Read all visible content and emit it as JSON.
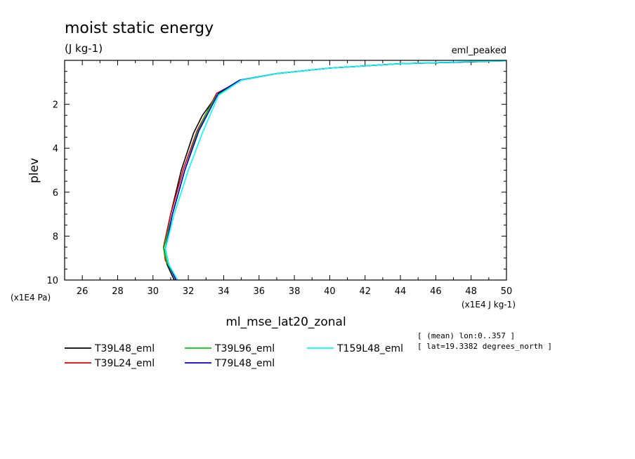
{
  "chart_data": {
    "type": "line",
    "title": "moist static energy",
    "subtitle": "(J kg-1)",
    "experiment_label": "eml_peaked",
    "xlabel": "ml_mse_lat20_zonal",
    "ylabel": "plev",
    "x_units": "(x1E4 J kg-1)",
    "y_units": "(x1E4 Pa)",
    "xlim": [
      25,
      50
    ],
    "ylim": [
      10,
      0
    ],
    "y_inverted": true,
    "x_ticks": [
      26,
      28,
      30,
      32,
      34,
      36,
      38,
      40,
      42,
      44,
      46,
      48,
      50
    ],
    "y_ticks": [
      2,
      4,
      6,
      8,
      10
    ],
    "grid": false,
    "legend_position": "bottom",
    "annotations": [
      "[ (mean) lon:0..357 ]",
      "[ lat=19.3382 degrees_north ]"
    ],
    "series": [
      {
        "name": "T39L48_eml",
        "color": "#000000",
        "points": [
          [
            31.2,
            10.0
          ],
          [
            30.8,
            9.3
          ],
          [
            30.6,
            8.5
          ],
          [
            31.0,
            7.0
          ],
          [
            31.6,
            5.0
          ],
          [
            32.3,
            3.3
          ],
          [
            32.8,
            2.5
          ],
          [
            33.6,
            1.6
          ],
          [
            35.0,
            0.9
          ],
          [
            37.0,
            0.6
          ],
          [
            40.0,
            0.35
          ],
          [
            44.0,
            0.15
          ],
          [
            50.0,
            0.02
          ]
        ]
      },
      {
        "name": "T39L24_eml",
        "color": "#e00000",
        "points": [
          [
            31.4,
            10.0
          ],
          [
            30.7,
            9.1
          ],
          [
            30.6,
            8.5
          ],
          [
            31.0,
            7.0
          ],
          [
            31.7,
            5.0
          ],
          [
            32.5,
            3.2
          ],
          [
            33.6,
            1.5
          ],
          [
            35.0,
            0.9
          ],
          [
            37.0,
            0.6
          ],
          [
            40.0,
            0.35
          ],
          [
            44.0,
            0.15
          ],
          [
            50.0,
            0.02
          ]
        ]
      },
      {
        "name": "T39L96_eml",
        "color": "#00cc00",
        "points": [
          [
            31.3,
            10.0
          ],
          [
            30.8,
            9.2
          ],
          [
            30.6,
            8.6
          ],
          [
            31.1,
            7.0
          ],
          [
            31.8,
            5.0
          ],
          [
            32.5,
            3.3
          ],
          [
            33.1,
            2.3
          ],
          [
            33.6,
            1.6
          ],
          [
            35.0,
            0.9
          ],
          [
            37.0,
            0.6
          ],
          [
            40.0,
            0.35
          ],
          [
            44.0,
            0.15
          ],
          [
            50.0,
            0.02
          ]
        ]
      },
      {
        "name": "T79L48_eml",
        "color": "#0000cc",
        "points": [
          [
            31.3,
            10.0
          ],
          [
            30.9,
            9.3
          ],
          [
            30.7,
            8.6
          ],
          [
            31.1,
            7.0
          ],
          [
            31.8,
            5.0
          ],
          [
            32.6,
            3.2
          ],
          [
            33.7,
            1.5
          ],
          [
            34.9,
            0.9
          ],
          [
            37.0,
            0.6
          ],
          [
            40.0,
            0.35
          ],
          [
            44.0,
            0.15
          ],
          [
            50.0,
            0.02
          ]
        ]
      },
      {
        "name": "T159L48_eml",
        "color": "#00ffff",
        "points": [
          [
            31.4,
            10.0
          ],
          [
            30.9,
            9.3
          ],
          [
            30.7,
            8.6
          ],
          [
            31.2,
            7.0
          ],
          [
            32.0,
            5.0
          ],
          [
            32.8,
            3.3
          ],
          [
            33.7,
            1.6
          ],
          [
            35.0,
            0.9
          ],
          [
            37.0,
            0.6
          ],
          [
            40.0,
            0.35
          ],
          [
            44.0,
            0.15
          ],
          [
            48.0,
            0.05
          ],
          [
            52.0,
            0.0
          ]
        ]
      }
    ]
  }
}
